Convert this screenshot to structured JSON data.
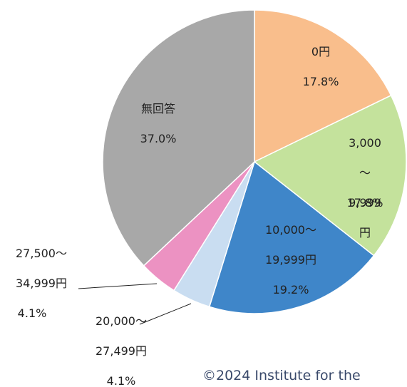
{
  "chart_data": {
    "type": "pie",
    "categories": [
      "0円",
      "3,000～\n9,999円",
      "10,000～\n19,999円",
      "20,000～\n27,499円",
      "27,500～\n34,999円",
      "無回答"
    ],
    "values": [
      17.8,
      17.8,
      19.2,
      4.1,
      4.1,
      37.0
    ],
    "value_labels": [
      "17.8%",
      "17.8%",
      "19.2%",
      "4.1%",
      "4.1%",
      "37.0%"
    ],
    "colors": [
      "#f9be8c",
      "#c4e29c",
      "#3f86c9",
      "#c9ddf1",
      "#ec92c2",
      "#a8a8a8"
    ],
    "footer": "©2024 Institute for the"
  }
}
